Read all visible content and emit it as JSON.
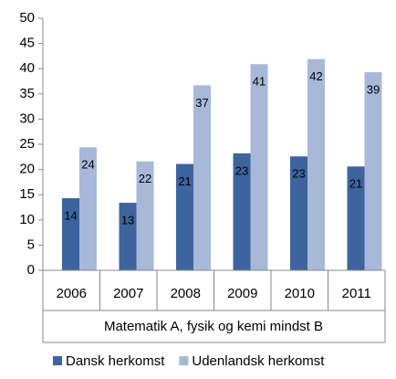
{
  "chart_data": {
    "type": "bar",
    "x_label": "Matematik A, fysik og kemi mindst B",
    "categories": [
      "2006",
      "2007",
      "2008",
      "2009",
      "2010",
      "2011"
    ],
    "series": [
      {
        "name": "Dansk herkomst",
        "color": "#3d649e",
        "values": [
          14.3,
          13.4,
          21.1,
          23.2,
          22.6,
          20.6
        ],
        "value_labels": [
          "14",
          "13",
          "21",
          "23",
          "23",
          "21"
        ]
      },
      {
        "name": "Udenlandsk herkomst",
        "color": "#a7b8d9",
        "values": [
          24.4,
          21.6,
          36.7,
          40.9,
          41.9,
          39.3
        ],
        "value_labels": [
          "24",
          "22",
          "37",
          "41",
          "42",
          "39"
        ]
      }
    ],
    "ylim": [
      0,
      50
    ],
    "yticks": [
      0,
      5,
      10,
      15,
      20,
      25,
      30,
      35,
      40,
      45,
      50
    ],
    "grid": false,
    "legend": "bottom"
  }
}
